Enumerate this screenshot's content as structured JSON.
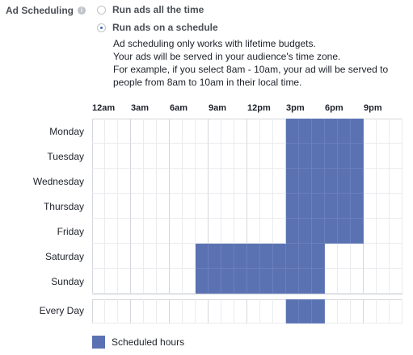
{
  "section": {
    "label": "Ad Scheduling",
    "info_icon": "info-icon"
  },
  "options": [
    {
      "label": "Run ads all the time",
      "selected": false
    },
    {
      "label": "Run ads on a schedule",
      "selected": true
    }
  ],
  "description": [
    "Ad scheduling only works with lifetime budgets.",
    "Your ads will be served in your audience's time zone.",
    "For example, if you select 8am - 10am, your ad will be served to",
    "people from 8am to 10am in their local time."
  ],
  "hour_labels": [
    "12am",
    "3am",
    "6am",
    "9am",
    "12pm",
    "3pm",
    "6pm",
    "9pm"
  ],
  "days": [
    {
      "name": "Monday",
      "start_hour": 15,
      "end_hour": 21
    },
    {
      "name": "Tuesday",
      "start_hour": 15,
      "end_hour": 21
    },
    {
      "name": "Wednesday",
      "start_hour": 15,
      "end_hour": 21
    },
    {
      "name": "Thursday",
      "start_hour": 15,
      "end_hour": 21
    },
    {
      "name": "Friday",
      "start_hour": 15,
      "end_hour": 21
    },
    {
      "name": "Saturday",
      "start_hour": 8,
      "end_hour": 18
    },
    {
      "name": "Sunday",
      "start_hour": 8,
      "end_hour": 18
    }
  ],
  "every_day": {
    "name": "Every Day",
    "start_hour": 15,
    "end_hour": 18
  },
  "legend": {
    "label": "Scheduled hours",
    "color": "#5b72b2"
  }
}
